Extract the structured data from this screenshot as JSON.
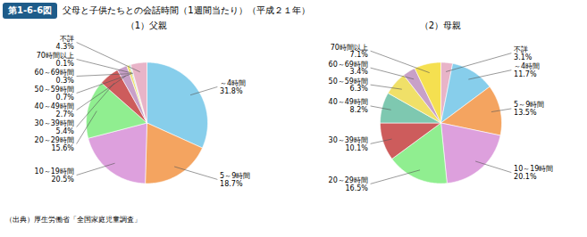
{
  "title": "第1-6-6図",
  "subtitle": "父母と子供たちとの会話時間（1週間当たり）（平成２１年）",
  "annotations": [
    "（出典）厚生労働省「全国家庭児童調査」"
  ],
  "chart_data": [
    {
      "type": "pie",
      "title": "（1）父親",
      "categories": [
        "～4時間",
        "5～9時間",
        "10～19時間",
        "20～29時間",
        "30～39時間",
        "40～49時間",
        "50～59時間",
        "60～69時間",
        "70時間以上",
        "不詳"
      ],
      "values": [
        31.8,
        18.7,
        20.5,
        15.6,
        5.4,
        2.7,
        0.7,
        0.3,
        0.1,
        4.3
      ],
      "value_labels": [
        "31.8%",
        "18.7%",
        "20.5%",
        "15.6%",
        "5.4%",
        "2.7%",
        "0.7%",
        "0.3%",
        "0.1%",
        "4.3%"
      ],
      "colors": [
        "#87ceeb",
        "#f4a460",
        "#dda0dd",
        "#90ee90",
        "#cd5c5c",
        "#c8a0c8",
        "#f0e068",
        "#7ec8b0",
        "#f5c8a0",
        "#e8b4c8"
      ],
      "data_labels": true
    },
    {
      "type": "pie",
      "title": "（2）母親",
      "categories": [
        "不詳",
        "～4時間",
        "5～9時間",
        "10～19時間",
        "20～29時間",
        "30～39時間",
        "40～49時間",
        "50～59時間",
        "60～69時間",
        "70時間以上"
      ],
      "values": [
        3.1,
        11.7,
        13.5,
        20.1,
        16.5,
        10.1,
        8.2,
        6.3,
        3.4,
        7.1
      ],
      "value_labels": [
        "3.1%",
        "11.7%",
        "13.5%",
        "20.1%",
        "16.5%",
        "10.1%",
        "8.2%",
        "6.3%",
        "3.4%",
        "7.1%"
      ],
      "colors": [
        "#e8b4c8",
        "#87ceeb",
        "#f4a460",
        "#dda0dd",
        "#90ee90",
        "#cd5c5c",
        "#7ec8b0",
        "#f0e068",
        "#c8a0c8",
        "#f5e050"
      ],
      "data_labels": true
    }
  ]
}
